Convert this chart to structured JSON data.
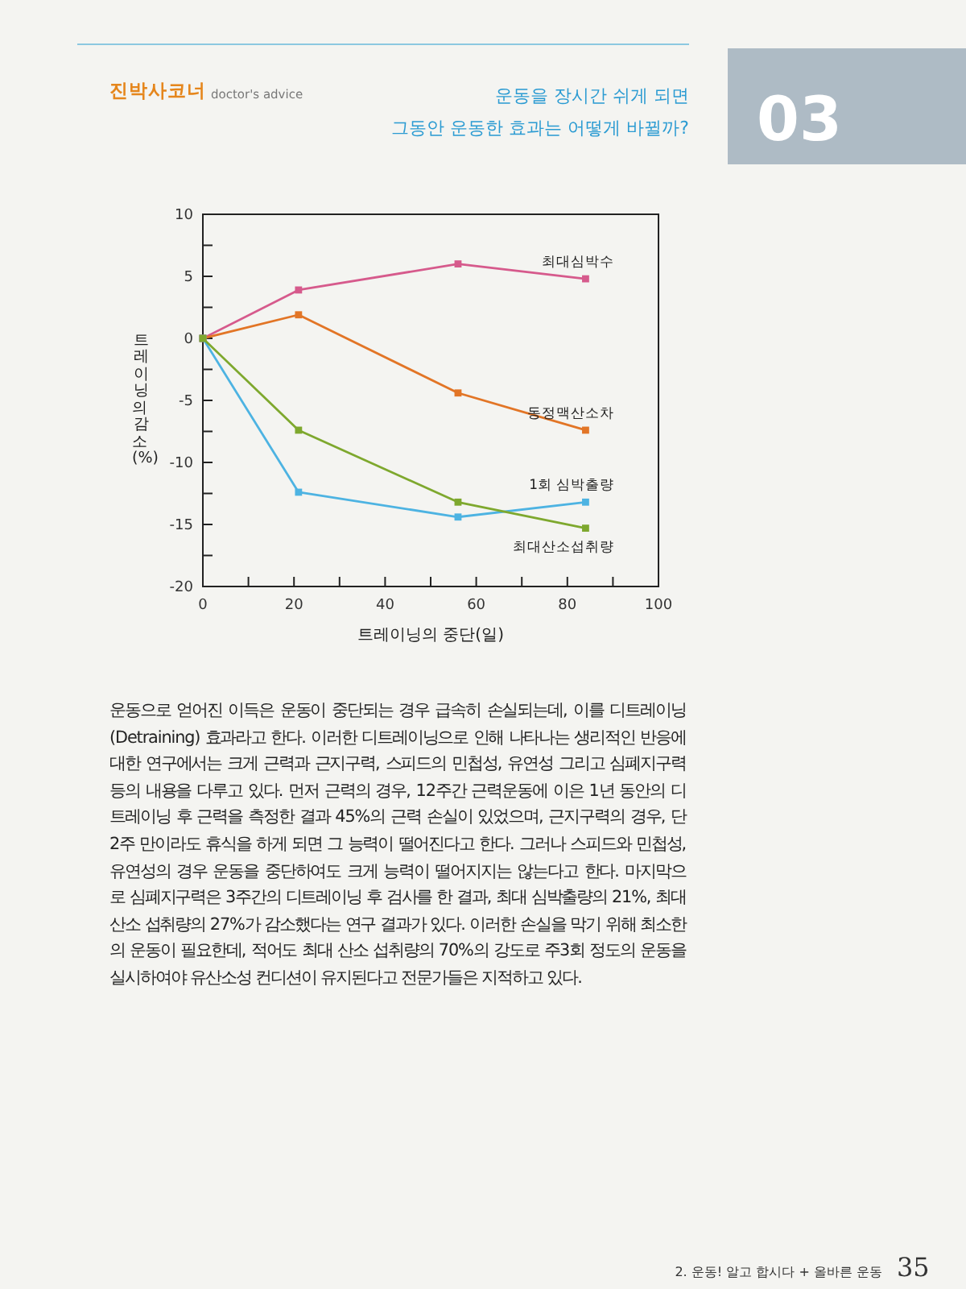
{
  "chart_data": {
    "type": "line",
    "title": "운동을 장시간 쉬게 되면\n그동안 운동한 효과는 어떻게 바뀔까?",
    "xlabel": "트레이닝의 중단(일)",
    "ylabel": "트레이닝의 감소 (%)",
    "x": [
      0,
      21,
      56,
      84
    ],
    "series": [
      {
        "name": "최대심박수",
        "color": "#d65a8c",
        "values": [
          0,
          3.9,
          6,
          4.8
        ]
      },
      {
        "name": "동정맥산소차",
        "color": "#e27526",
        "values": [
          0,
          1.9,
          -4.4,
          -7.4
        ]
      },
      {
        "name": "1회 심박출량",
        "color": "#4db3e2",
        "values": [
          0,
          -12.4,
          -14.4,
          -13.2
        ]
      },
      {
        "name": "최대산소섭취량",
        "color": "#7ea82e",
        "values": [
          0,
          -7.4,
          -13.2,
          -15.3
        ]
      }
    ],
    "xlim": [
      0,
      100
    ],
    "ylim": [
      -20,
      10
    ],
    "xticks": [
      0,
      {
        "value": 10,
        "label": null
      },
      20,
      {
        "value": 30,
        "label": null
      },
      40,
      {
        "value": 50,
        "label": null
      },
      60,
      {
        "value": 70,
        "label": null
      },
      80,
      {
        "value": 90,
        "label": null
      },
      100
    ],
    "yticks": [
      -20,
      {
        "value": -17.5,
        "label": null
      },
      -15,
      {
        "value": -12.5,
        "label": null
      },
      -10,
      {
        "value": -7.5,
        "label": null
      },
      -5,
      {
        "value": -2.5,
        "label": null
      },
      0,
      {
        "value": 2.5,
        "label": null
      },
      5,
      {
        "value": 7.5,
        "label": null
      },
      10
    ],
    "marker": "square",
    "annotations": [
      "진박사코너",
      "doctor's advice",
      "03",
      "운동으로 얻어진 이득은 운동이 중단되는 경우 급속히 손실되는데, 이를 디트레이닝(Detraining) 효과라고 한다. 이러한 디트레이닝으로 인해 나타나는 생리적인 반응에 대한 연구에서는 크게 근력과 근지구력, 스피드의 민첩성, 유연성 그리고 심폐지구력 등의 내용을 다루고 있다. 먼저 근력의 경우, 12주간 근력운동에 이은 1년 동안의 디트레이닝 후 근력을 측정한 결과 45%의 근력 손실이 있었으며, 근지구력의 경우, 단 2주 만이라도 휴식을 하게 되면 그 능력이 떨어진다고 한다. 그러나 스피드와 민첩성, 유연성의 경우 운동을 중단하여도 크게 능력이 떨어지지는 않는다고 한다. 마지막으로 심폐지구력은 3주간의 디트레이닝 후 검사를 한 결과, 최대 심박출량의 21%, 최대 산소 섭취량의 27%가 감소했다는 연구 결과가 있다. 이러한 손실을 막기 위해 최소한의 운동이 필요한데, 적어도 최대 산소 섭취량의 70%의 강도로 주3회 정도의 운동을 실시하여야 유산소성 컨디션이 유지된다고 전문가들은 지적하고 있다.",
      "2. 운동! 알고 합시다 + 올바른 운동",
      "35"
    ]
  }
}
